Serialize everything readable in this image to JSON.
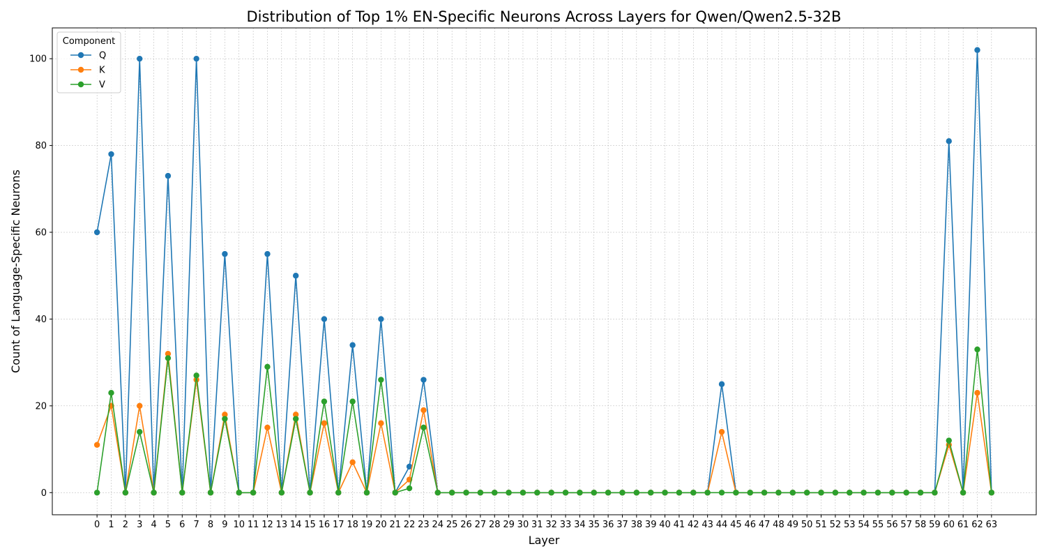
{
  "chart_data": {
    "type": "line",
    "title": "Distribution of Top 1% EN-Specific Neurons Across Layers for Qwen/Qwen2.5-32B",
    "xlabel": "Layer",
    "ylabel": "Count of Language-Specific Neurons",
    "x": [
      0,
      1,
      2,
      3,
      4,
      5,
      6,
      7,
      8,
      9,
      10,
      11,
      12,
      13,
      14,
      15,
      16,
      17,
      18,
      19,
      20,
      21,
      22,
      23,
      24,
      25,
      26,
      27,
      28,
      29,
      30,
      31,
      32,
      33,
      34,
      35,
      36,
      37,
      38,
      39,
      40,
      41,
      42,
      43,
      44,
      45,
      46,
      47,
      48,
      49,
      50,
      51,
      52,
      53,
      54,
      55,
      56,
      57,
      58,
      59,
      60,
      61,
      62,
      63
    ],
    "ylim": [
      -5.1,
      107.1
    ],
    "yticks": [
      0,
      20,
      40,
      60,
      80,
      100
    ],
    "grid": true,
    "legend": {
      "title": "Component",
      "placement": "top-left"
    },
    "series": [
      {
        "name": "Q",
        "color": "#1f77b4",
        "values": [
          60,
          78,
          0,
          100,
          0,
          73,
          0,
          100,
          0,
          55,
          0,
          0,
          55,
          0,
          50,
          0,
          40,
          0,
          34,
          0,
          40,
          0,
          6,
          26,
          0,
          0,
          0,
          0,
          0,
          0,
          0,
          0,
          0,
          0,
          0,
          0,
          0,
          0,
          0,
          0,
          0,
          0,
          0,
          0,
          25,
          0,
          0,
          0,
          0,
          0,
          0,
          0,
          0,
          0,
          0,
          0,
          0,
          0,
          0,
          0,
          81,
          0,
          102,
          0
        ]
      },
      {
        "name": "K",
        "color": "#ff7f0e",
        "values": [
          11,
          20,
          0,
          20,
          0,
          32,
          0,
          26,
          0,
          18,
          0,
          0,
          15,
          0,
          18,
          0,
          16,
          0,
          7,
          0,
          16,
          0,
          3,
          19,
          0,
          0,
          0,
          0,
          0,
          0,
          0,
          0,
          0,
          0,
          0,
          0,
          0,
          0,
          0,
          0,
          0,
          0,
          0,
          0,
          14,
          0,
          0,
          0,
          0,
          0,
          0,
          0,
          0,
          0,
          0,
          0,
          0,
          0,
          0,
          0,
          11,
          0,
          23,
          0
        ]
      },
      {
        "name": "V",
        "color": "#2ca02c",
        "values": [
          0,
          23,
          0,
          14,
          0,
          31,
          0,
          27,
          0,
          17,
          0,
          0,
          29,
          0,
          17,
          0,
          21,
          0,
          21,
          0,
          26,
          0,
          1,
          15,
          0,
          0,
          0,
          0,
          0,
          0,
          0,
          0,
          0,
          0,
          0,
          0,
          0,
          0,
          0,
          0,
          0,
          0,
          0,
          0,
          0,
          0,
          0,
          0,
          0,
          0,
          0,
          0,
          0,
          0,
          0,
          0,
          0,
          0,
          0,
          0,
          12,
          0,
          33,
          0
        ]
      }
    ]
  }
}
